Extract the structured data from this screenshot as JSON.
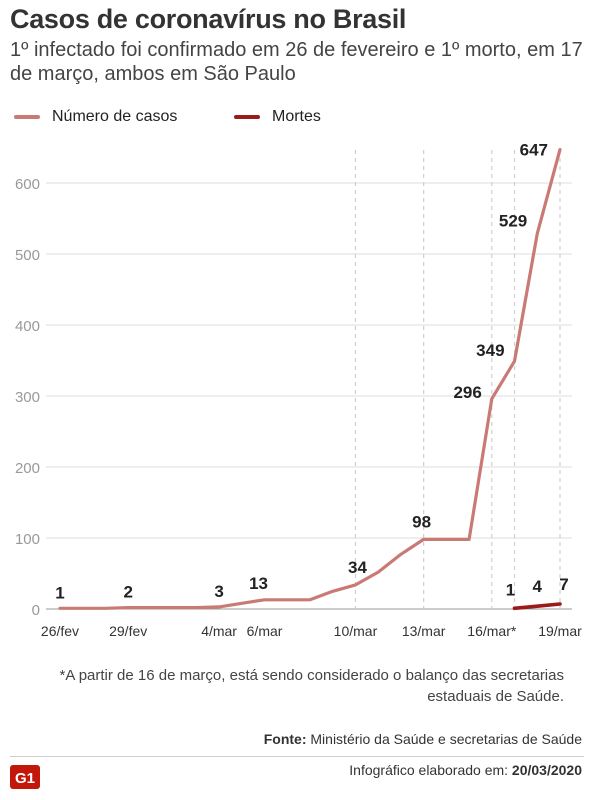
{
  "header": {
    "title": "Casos de coronavírus no Brasil",
    "subtitle": "1º infectado foi confirmado em 26 de fevereiro e 1º morto, em 17 de março, ambos em São Paulo"
  },
  "footer": {
    "footnote": "*A partir de 16 de março, está sendo considerado o balanço das secretarias estaduais de Saúde.",
    "source_label": "Fonte:",
    "source_text": "Ministério da Saúde e secretarias de Saúde",
    "credit_label": "Infográfico elaborado em:",
    "credit_date": "20/03/2020",
    "logo_text": "G1"
  },
  "chart_data": {
    "type": "line",
    "title": "Casos de coronavírus no Brasil",
    "subtitle": "1º infectado foi confirmado em 26 de fevereiro e 1º morto, em 17 de março, ambos em São Paulo",
    "legend_position": "top-left",
    "grid": "horizontal",
    "ylim": [
      0,
      650
    ],
    "y_ticks": [
      0,
      100,
      200,
      300,
      400,
      500,
      600
    ],
    "x_range": [
      "2020-02-26",
      "2020-03-19"
    ],
    "x_ticks": [
      {
        "date": "2020-02-26",
        "label": "26/fev"
      },
      {
        "date": "2020-02-29",
        "label": "29/fev"
      },
      {
        "date": "2020-03-04",
        "label": "4/mar"
      },
      {
        "date": "2020-03-06",
        "label": "6/mar"
      },
      {
        "date": "2020-03-10",
        "label": "10/mar"
      },
      {
        "date": "2020-03-13",
        "label": "13/mar"
      },
      {
        "date": "2020-03-16",
        "label": "16/mar*"
      },
      {
        "date": "2020-03-19",
        "label": "19/mar"
      }
    ],
    "dashed_guides": [
      "2020-03-10",
      "2020-03-13",
      "2020-03-16",
      "2020-03-17",
      "2020-03-19"
    ],
    "series": [
      {
        "name": "Número de casos",
        "color": "#c97a74",
        "points": [
          {
            "x": "2020-02-26",
            "y": 1,
            "label": "1"
          },
          {
            "x": "2020-02-27",
            "y": 1
          },
          {
            "x": "2020-02-28",
            "y": 1
          },
          {
            "x": "2020-02-29",
            "y": 2,
            "label": "2"
          },
          {
            "x": "2020-03-01",
            "y": 2
          },
          {
            "x": "2020-03-02",
            "y": 2
          },
          {
            "x": "2020-03-03",
            "y": 2
          },
          {
            "x": "2020-03-04",
            "y": 3,
            "label": "3"
          },
          {
            "x": "2020-03-05",
            "y": 8
          },
          {
            "x": "2020-03-06",
            "y": 13,
            "label": "13"
          },
          {
            "x": "2020-03-07",
            "y": 13
          },
          {
            "x": "2020-03-08",
            "y": 13
          },
          {
            "x": "2020-03-09",
            "y": 25
          },
          {
            "x": "2020-03-10",
            "y": 34,
            "label": "34"
          },
          {
            "x": "2020-03-11",
            "y": 52
          },
          {
            "x": "2020-03-12",
            "y": 77
          },
          {
            "x": "2020-03-13",
            "y": 98,
            "label": "98"
          },
          {
            "x": "2020-03-14",
            "y": 98
          },
          {
            "x": "2020-03-15",
            "y": 98
          },
          {
            "x": "2020-03-16",
            "y": 296,
            "label": "296"
          },
          {
            "x": "2020-03-17",
            "y": 349,
            "label": "349"
          },
          {
            "x": "2020-03-18",
            "y": 529,
            "label": "529"
          },
          {
            "x": "2020-03-19",
            "y": 647,
            "label": "647"
          }
        ]
      },
      {
        "name": "Mortes",
        "color": "#9b1b1b",
        "points": [
          {
            "x": "2020-03-17",
            "y": 1,
            "label": "1"
          },
          {
            "x": "2020-03-18",
            "y": 4,
            "label": "4"
          },
          {
            "x": "2020-03-19",
            "y": 7,
            "label": "7"
          }
        ]
      }
    ]
  }
}
